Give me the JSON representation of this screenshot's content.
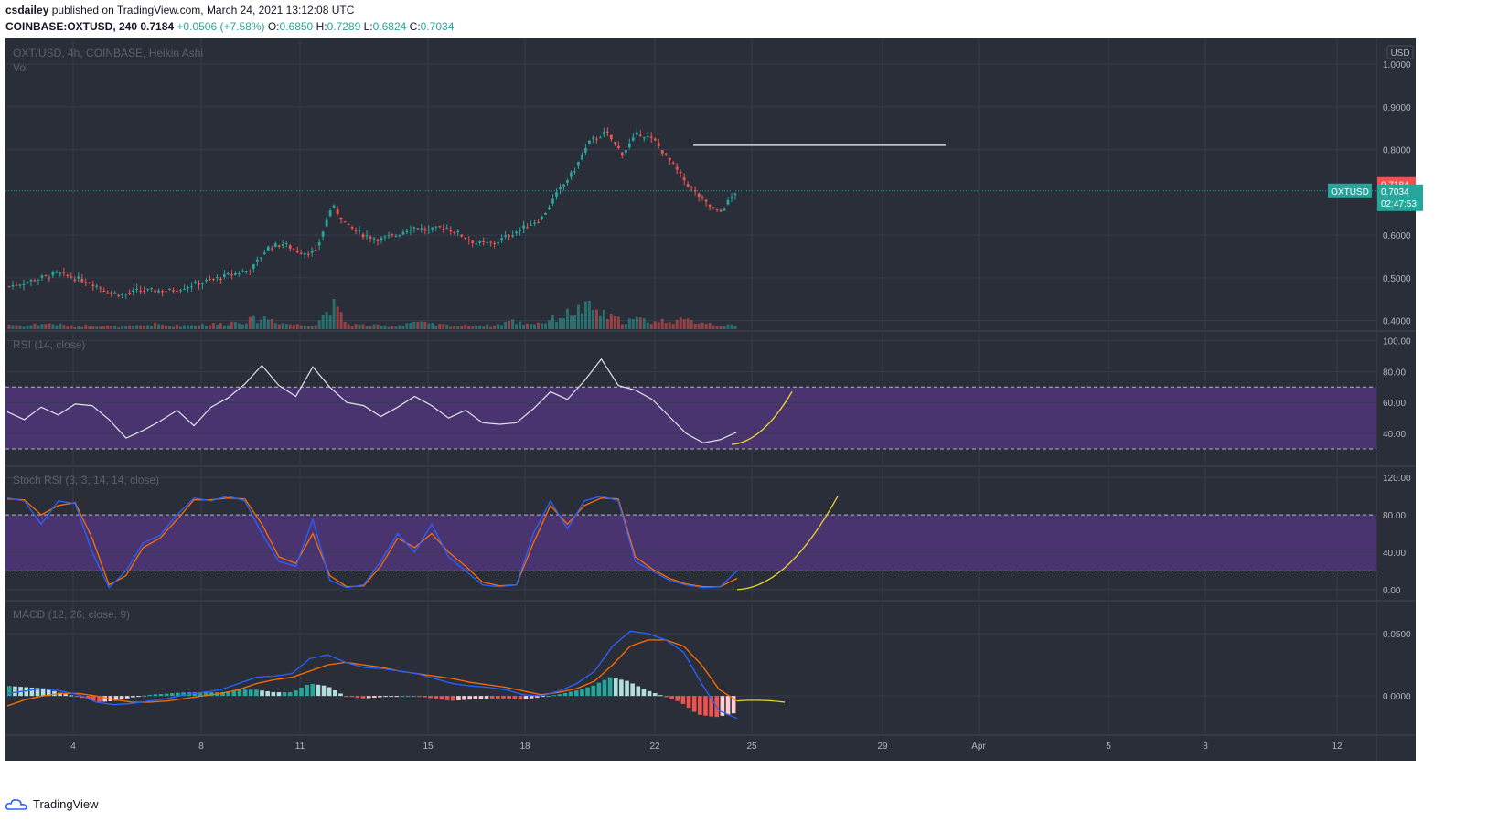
{
  "header": {
    "author": "csdailey",
    "published_text": "published on TradingView.com, March 24, 2021 13:12:08 UTC",
    "symbol": "COINBASE:OXTUSD, 240",
    "last": "0.7184",
    "change": "+0.0506 (+7.58%)",
    "o_label": "O:",
    "o_val": "0.6850",
    "h_label": "H:",
    "h_val": "0.7289",
    "l_label": "L:",
    "l_val": "0.6824",
    "c_label": "C:",
    "c_val": "0.7034"
  },
  "footer": {
    "brand": "TradingView"
  },
  "colors": {
    "bg": "#2a2e39",
    "grid": "#363c4e",
    "up": "#26a69a",
    "down": "#ef5350",
    "rsi_band": "#4a3470",
    "macd": "#2962ff",
    "signal": "#ff6d00",
    "projection": "#e6d52a"
  },
  "chart_data": [
    {
      "type": "candlestick",
      "title": "OXT/USD, 4h, COINBASE, Heikin Ashi",
      "volume_label": "Vol",
      "currency": "USD",
      "ylim": [
        0.38,
        1.06
      ],
      "yticks": [
        "1.0000",
        "0.9000",
        "0.8000",
        "0.6000",
        "0.5000",
        "0.4000"
      ],
      "xticks": [
        "4",
        "8",
        "11",
        "15",
        "18",
        "22",
        "25",
        "29",
        "Apr",
        "5",
        "8",
        "12"
      ],
      "symbol_tag": "OXTUSD",
      "last_price": "0.7184",
      "close_price": "0.7034",
      "countdown": "02:47:53",
      "resistance_level": 0.81,
      "close_path": [
        0.48,
        0.49,
        0.5,
        0.51,
        0.5,
        0.49,
        0.47,
        0.46,
        0.47,
        0.47,
        0.47,
        0.48,
        0.49,
        0.5,
        0.51,
        0.52,
        0.57,
        0.58,
        0.56,
        0.56,
        0.67,
        0.62,
        0.6,
        0.59,
        0.6,
        0.62,
        0.61,
        0.62,
        0.6,
        0.58,
        0.58,
        0.6,
        0.62,
        0.64,
        0.7,
        0.75,
        0.82,
        0.84,
        0.79,
        0.84,
        0.82,
        0.77,
        0.72,
        0.68,
        0.65,
        0.7
      ],
      "volume_path": [
        0.3,
        0.2,
        0.35,
        0.3,
        0.15,
        0.25,
        0.2,
        0.15,
        0.2,
        0.3,
        0.2,
        0.25,
        0.3,
        0.3,
        0.45,
        0.55,
        0.7,
        0.35,
        0.25,
        0.3,
        1.5,
        0.3,
        0.25,
        0.2,
        0.2,
        0.45,
        0.3,
        0.25,
        0.2,
        0.25,
        0.2,
        0.5,
        0.35,
        0.4,
        0.7,
        1.1,
        1.3,
        0.8,
        0.5,
        0.6,
        0.45,
        0.55,
        0.5,
        0.45,
        0.25,
        0.2
      ]
    },
    {
      "type": "line",
      "title": "RSI (14, close)",
      "ylim": [
        20,
        105
      ],
      "yticks": [
        "100.00",
        "80.00",
        "60.00",
        "40.00"
      ],
      "band": [
        30,
        70
      ],
      "values": [
        54,
        49,
        57,
        52,
        59,
        58,
        49,
        37,
        42,
        48,
        55,
        45,
        57,
        63,
        72,
        84,
        71,
        64,
        83,
        70,
        60,
        58,
        51,
        57,
        64,
        58,
        50,
        55,
        47,
        46,
        47,
        56,
        67,
        62,
        74,
        88,
        71,
        68,
        62,
        51,
        40,
        34,
        36,
        41
      ],
      "projection": [
        33,
        48,
        67
      ]
    },
    {
      "type": "line",
      "title": "Stoch RSI (3, 3, 14, 14, close)",
      "ylim": [
        -10,
        130
      ],
      "yticks": [
        "120.00",
        "80.00",
        "40.00",
        "0.00"
      ],
      "band": [
        20,
        80
      ],
      "series": [
        {
          "name": "K",
          "values": [
            98,
            95,
            70,
            95,
            92,
            40,
            2,
            20,
            50,
            58,
            80,
            98,
            95,
            100,
            95,
            60,
            30,
            25,
            75,
            10,
            2,
            5,
            30,
            60,
            40,
            70,
            35,
            20,
            5,
            3,
            5,
            60,
            95,
            65,
            95,
            100,
            95,
            30,
            20,
            10,
            5,
            2,
            3,
            20
          ]
        },
        {
          "name": "D",
          "values": [
            97,
            96,
            80,
            90,
            93,
            55,
            5,
            15,
            45,
            55,
            75,
            96,
            96,
            98,
            97,
            70,
            35,
            28,
            60,
            15,
            3,
            4,
            25,
            55,
            45,
            60,
            40,
            25,
            8,
            4,
            5,
            50,
            90,
            70,
            90,
            98,
            97,
            35,
            22,
            12,
            6,
            3,
            3,
            12
          ]
        }
      ],
      "projection": [
        0,
        40,
        100
      ]
    },
    {
      "type": "line",
      "title": "MACD (12, 26, close, 9)",
      "ylim": [
        -0.03,
        0.075
      ],
      "yticks": [
        "0.0500",
        "0.0000"
      ],
      "series": [
        {
          "name": "MACD",
          "values": [
            0.002,
            0.004,
            0.006,
            0.004,
            0.001,
            -0.005,
            -0.007,
            -0.006,
            -0.004,
            -0.002,
            0.001,
            0.003,
            0.005,
            0.01,
            0.015,
            0.016,
            0.018,
            0.03,
            0.033,
            0.027,
            0.023,
            0.022,
            0.02,
            0.018,
            0.014,
            0.01,
            0.008,
            0.007,
            0.005,
            0.001,
            0.0,
            0.004,
            0.01,
            0.02,
            0.04,
            0.052,
            0.05,
            0.045,
            0.035,
            0.01,
            -0.012,
            -0.018
          ]
        },
        {
          "name": "Signal",
          "values": [
            -0.008,
            -0.003,
            0.0,
            0.002,
            0.002,
            0.0,
            -0.003,
            -0.005,
            -0.005,
            -0.004,
            -0.002,
            0.0,
            0.002,
            0.005,
            0.01,
            0.013,
            0.015,
            0.02,
            0.025,
            0.027,
            0.025,
            0.023,
            0.02,
            0.018,
            0.016,
            0.014,
            0.011,
            0.009,
            0.007,
            0.004,
            0.001,
            0.003,
            0.006,
            0.012,
            0.025,
            0.04,
            0.045,
            0.045,
            0.04,
            0.025,
            0.005,
            -0.004
          ]
        },
        {
          "name": "Histogram",
          "values": [
            0.008,
            0.007,
            0.006,
            0.002,
            -0.001,
            -0.005,
            -0.004,
            -0.001,
            0.001,
            0.002,
            0.003,
            0.003,
            0.003,
            0.005,
            0.005,
            0.003,
            0.003,
            0.01,
            0.008,
            0.0,
            -0.002,
            -0.001,
            0.0,
            0.0,
            -0.002,
            -0.004,
            -0.003,
            -0.002,
            -0.002,
            -0.003,
            -0.001,
            0.001,
            0.004,
            0.008,
            0.015,
            0.012,
            0.005,
            0.0,
            -0.005,
            -0.015,
            -0.017,
            -0.014
          ]
        }
      ],
      "projection": [
        -0.004,
        -0.006,
        -0.005
      ]
    }
  ]
}
